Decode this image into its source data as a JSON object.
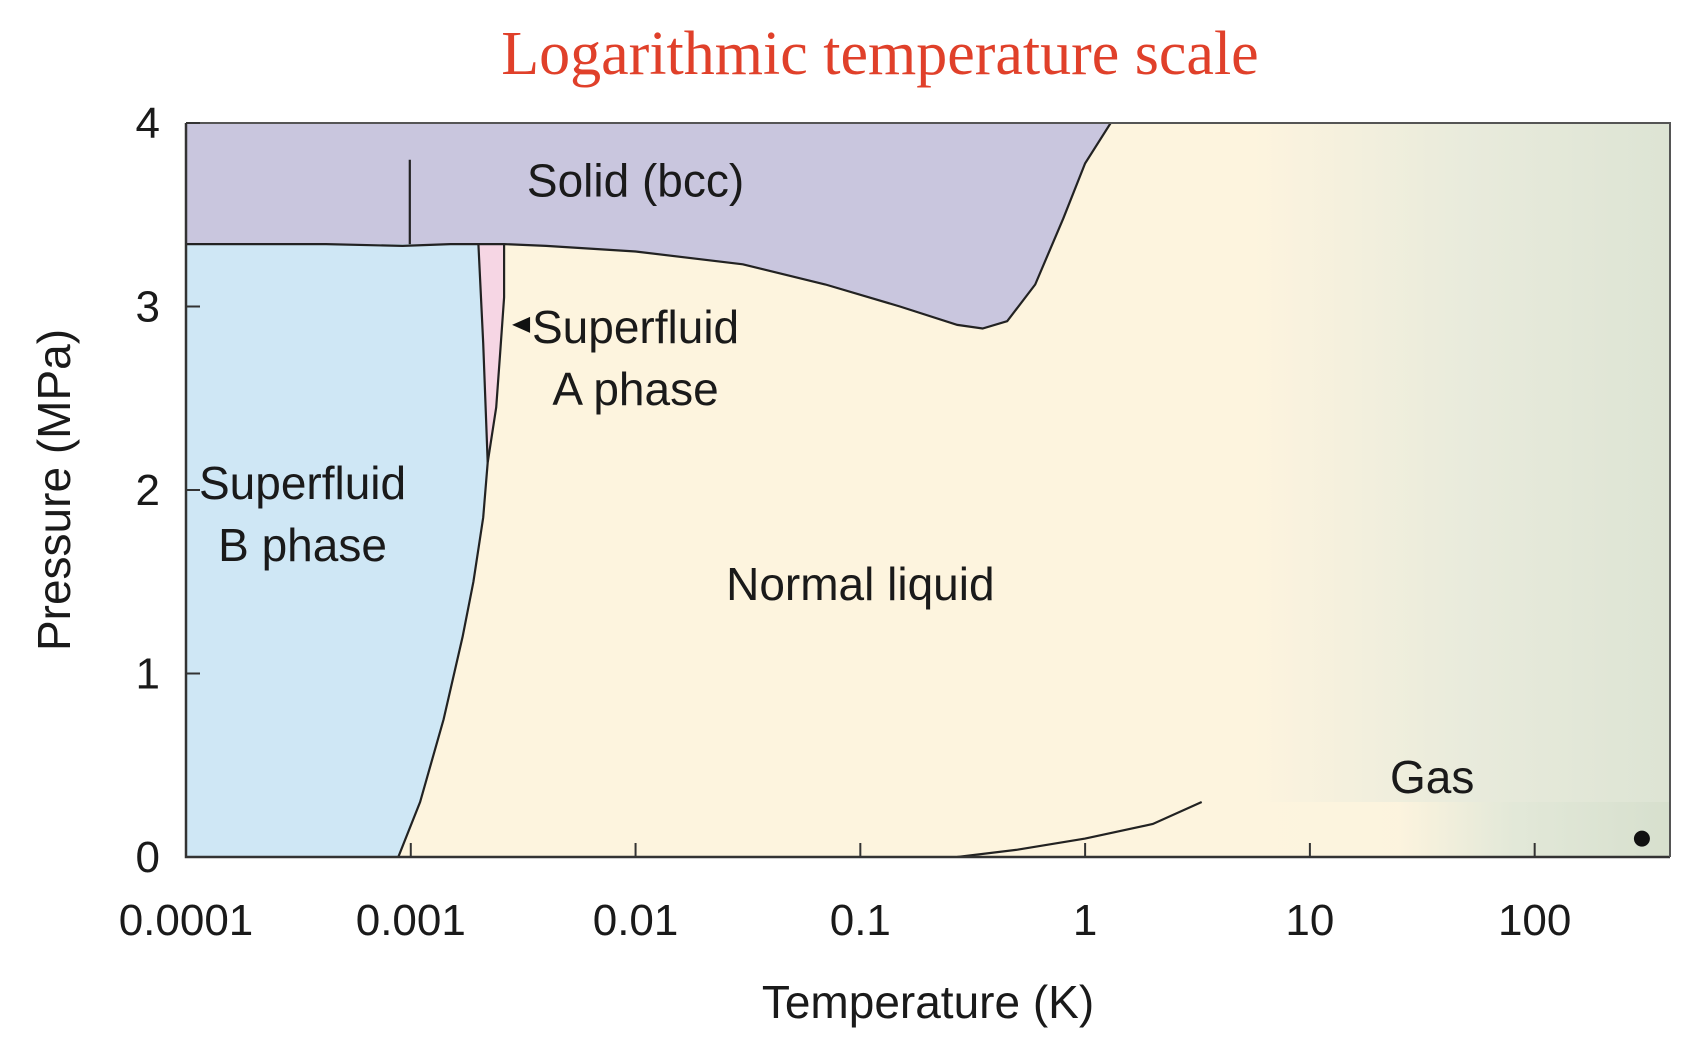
{
  "chart_data": {
    "type": "area",
    "title": "Logarithmic temperature scale",
    "xlabel": "Temperature (K)",
    "ylabel": "Pressure (MPa)",
    "x_scale": "log",
    "xlim": [
      0.0001,
      400
    ],
    "ylim": [
      0,
      4
    ],
    "x_ticks": [
      0.0001,
      0.001,
      0.01,
      0.1,
      1,
      10,
      100
    ],
    "x_tick_labels": [
      "0.0001",
      "0.001",
      "0.01",
      "0.1",
      "1",
      "10",
      "100"
    ],
    "y_ticks": [
      0,
      1,
      2,
      3,
      4
    ],
    "y_tick_labels": [
      "0",
      "1",
      "2",
      "3",
      "4"
    ],
    "grid": false,
    "colors": {
      "title": "#e0402a",
      "solid": "#c9c6de",
      "superfluid_b": "#cfe7f5",
      "superfluid_a": "#f6d6e4",
      "normal_liquid": "#fdf4de",
      "gas": "#dde4d4",
      "line": "#222222"
    },
    "regions": [
      {
        "name": "Solid (bcc)",
        "lines": [
          "Solid (bcc)"
        ],
        "label_at": [
          0.01,
          3.6
        ]
      },
      {
        "name": "Superfluid A phase",
        "lines": [
          "Superfluid",
          "A phase"
        ],
        "label_at": [
          0.01,
          2.8
        ],
        "arrow_to": [
          0.0026,
          2.9
        ]
      },
      {
        "name": "Superfluid B phase",
        "lines": [
          "Superfluid",
          "B phase"
        ],
        "label_at": [
          0.00033,
          1.95
        ]
      },
      {
        "name": "Normal liquid",
        "lines": [
          "Normal liquid"
        ],
        "label_at": [
          0.1,
          1.4
        ]
      },
      {
        "name": "Gas",
        "lines": [
          "Gas"
        ],
        "label_at": [
          35,
          0.35
        ]
      }
    ],
    "series": [
      {
        "name": "Solid boundary",
        "x": [
          0.0001,
          0.00042,
          0.00092,
          0.0015,
          0.002,
          0.0026,
          0.004,
          0.01,
          0.03,
          0.07,
          0.15,
          0.27,
          0.35,
          0.45,
          0.6,
          0.8,
          1.0,
          1.3
        ],
        "y": [
          3.34,
          3.34,
          3.33,
          3.34,
          3.34,
          3.34,
          3.33,
          3.3,
          3.23,
          3.12,
          3.0,
          2.9,
          2.88,
          2.92,
          3.12,
          3.48,
          3.78,
          4.0
        ]
      },
      {
        "name": "Superfluid B boundary",
        "x": [
          0.00088,
          0.0011,
          0.0014,
          0.0017,
          0.0019,
          0.0021,
          0.0022
        ],
        "y": [
          0.0,
          0.3,
          0.75,
          1.2,
          1.5,
          1.85,
          2.15
        ]
      },
      {
        "name": "A-B boundary",
        "x": [
          0.002,
          0.0021,
          0.0022
        ],
        "y": [
          3.34,
          2.8,
          2.15
        ]
      },
      {
        "name": "Superfluid A boundary",
        "x": [
          0.0022,
          0.0024,
          0.0025,
          0.0026,
          0.0026
        ],
        "y": [
          2.15,
          2.45,
          2.75,
          3.05,
          3.34
        ]
      },
      {
        "name": "Solid bcc-bcc boundary",
        "x": [
          0.00099,
          0.00099
        ],
        "y": [
          3.34,
          3.8
        ]
      },
      {
        "name": "Vaporization curve",
        "x": [
          0.27,
          0.5,
          1.0,
          2.0,
          3.3
        ],
        "y": [
          0.0,
          0.04,
          0.1,
          0.18,
          0.3
        ]
      }
    ],
    "points": [
      {
        "x": 300,
        "y": 0.1
      }
    ]
  }
}
